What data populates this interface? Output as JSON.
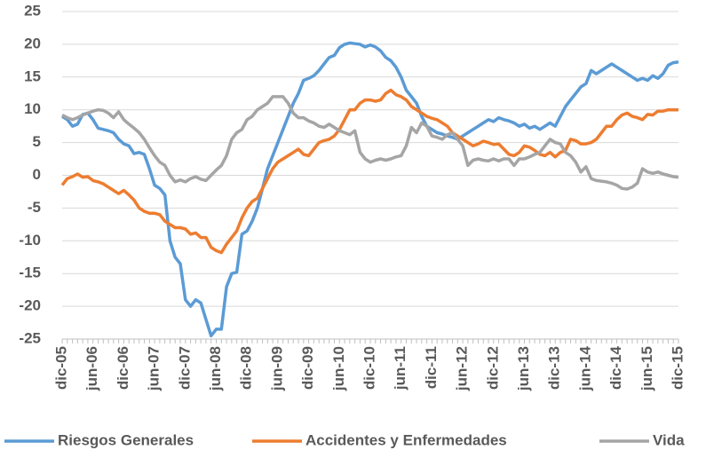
{
  "chart_data": {
    "type": "line",
    "categories": [
      "dic-05",
      null,
      null,
      null,
      null,
      null,
      "jun-06",
      null,
      null,
      null,
      null,
      null,
      "dic-06",
      null,
      null,
      null,
      null,
      null,
      "jun-07",
      null,
      null,
      null,
      null,
      null,
      "dic-07",
      null,
      null,
      null,
      null,
      null,
      "jun-08",
      null,
      null,
      null,
      null,
      null,
      "dic-08",
      null,
      null,
      null,
      null,
      null,
      "jun-09",
      null,
      null,
      null,
      null,
      null,
      "dic-09",
      null,
      null,
      null,
      null,
      null,
      "jun-10",
      null,
      null,
      null,
      null,
      null,
      "dic-10",
      null,
      null,
      null,
      null,
      null,
      "jun-11",
      null,
      null,
      null,
      null,
      null,
      "dic-11",
      null,
      null,
      null,
      null,
      null,
      "jun-12",
      null,
      null,
      null,
      null,
      null,
      "dic-12",
      null,
      null,
      null,
      null,
      null,
      "jun-13",
      null,
      null,
      null,
      null,
      null,
      "dic-13",
      null,
      null,
      null,
      null,
      null,
      "jun-14",
      null,
      null,
      null,
      null,
      null,
      "dic-14",
      null,
      null,
      null,
      null,
      null,
      "jun-15",
      null,
      null,
      null,
      null,
      null,
      "dic-15"
    ],
    "series": [
      {
        "name": "Riesgos Generales",
        "color": "#5b9bd5",
        "values": [
          9,
          8.5,
          7.5,
          7.8,
          9.3,
          9.5,
          8.5,
          7.2,
          7,
          6.8,
          6.5,
          5.5,
          4.8,
          4.5,
          3.3,
          3.5,
          3.2,
          1,
          -1.5,
          -2,
          -3,
          -10,
          -12.5,
          -13.5,
          -19,
          -20,
          -19,
          -19.5,
          -22,
          -24.5,
          -23.5,
          -23.5,
          -17,
          -15,
          -14.8,
          -9,
          -8.5,
          -7,
          -5,
          -2,
          1,
          3,
          5,
          7,
          9,
          11,
          12.5,
          14.5,
          14.8,
          15.2,
          16,
          17,
          18,
          18.3,
          19.5,
          20,
          20.2,
          20.1,
          20,
          19.6,
          19.9,
          19.6,
          19,
          18,
          17.5,
          16.5,
          15,
          13,
          12,
          11,
          9,
          7.5,
          7,
          6.5,
          6.3,
          6,
          5.8,
          5.5,
          6,
          6.5,
          7,
          7.5,
          8,
          8.5,
          8.2,
          8.8,
          8.5,
          8.3,
          8,
          7.5,
          7.8,
          7.2,
          7.5,
          7,
          7.5,
          8,
          7.5,
          9,
          10.5,
          11.5,
          12.5,
          13.5,
          14,
          16,
          15.5,
          16,
          16.5,
          17,
          16.5,
          16,
          15.5,
          15,
          14.5,
          14.8,
          14.5,
          15.2,
          14.8,
          15.5,
          16.8,
          17.2,
          17.3
        ]
      },
      {
        "name": "Accidentes y Enfermedades",
        "color": "#ed7d31",
        "values": [
          -1.5,
          -0.5,
          -0.2,
          0.2,
          -0.3,
          -0.2,
          -0.8,
          -1,
          -1.3,
          -1.8,
          -2.3,
          -2.8,
          -2.3,
          -3,
          -3.8,
          -5,
          -5.5,
          -5.8,
          -5.8,
          -6,
          -7,
          -7.5,
          -8,
          -8,
          -8.2,
          -9,
          -8.8,
          -9.5,
          -9.5,
          -11,
          -11.5,
          -11.8,
          -10.5,
          -9.5,
          -8.5,
          -6.5,
          -5,
          -4,
          -3.5,
          -2,
          -0.5,
          1,
          2,
          2.5,
          3,
          3.5,
          4,
          3.2,
          3,
          4,
          5,
          5.3,
          5.5,
          6,
          7,
          8.5,
          10,
          10,
          11,
          11.5,
          11.5,
          11.3,
          11.5,
          12.5,
          13,
          12.3,
          12,
          11.5,
          10.5,
          10,
          9.5,
          9,
          8.7,
          8.5,
          8,
          7.5,
          6.5,
          6,
          5.5,
          5,
          4.5,
          4.8,
          5.2,
          5,
          4.7,
          4.8,
          4,
          3.2,
          3,
          3.5,
          4.5,
          4.3,
          3.8,
          3.2,
          3,
          3.5,
          2.8,
          3.5,
          3.8,
          5.5,
          5.3,
          4.8,
          4.8,
          5,
          5.5,
          6.5,
          7.5,
          7.5,
          8.5,
          9.2,
          9.5,
          9,
          8.8,
          8.5,
          9.3,
          9.2,
          9.8,
          9.8,
          10,
          10,
          10
        ]
      },
      {
        "name": "Vida",
        "color": "#a5a5a5",
        "values": [
          9.2,
          8.8,
          8.5,
          8.8,
          9.2,
          9.5,
          9.8,
          10,
          9.9,
          9.5,
          8.8,
          9.7,
          8.5,
          7.8,
          7.2,
          6.5,
          5.5,
          4.2,
          3,
          2,
          1.5,
          0,
          -1,
          -0.7,
          -1,
          -0.5,
          -0.2,
          -0.6,
          -0.8,
          0,
          0.8,
          1.5,
          3,
          5.5,
          6.5,
          7,
          8.5,
          9,
          10,
          10.5,
          11,
          12,
          12,
          12,
          11,
          9.5,
          8.8,
          8.8,
          8.3,
          8,
          7.5,
          7.3,
          7.8,
          7.3,
          6.8,
          6.5,
          6.2,
          6.8,
          3.5,
          2.5,
          2,
          2.3,
          2.5,
          2.3,
          2.5,
          2.8,
          3,
          4.5,
          7.3,
          6.5,
          8,
          7.5,
          6,
          5.8,
          5.5,
          6.2,
          6.5,
          5.5,
          4.5,
          1.5,
          2.3,
          2.5,
          2.3,
          2.2,
          2.5,
          2.2,
          2.5,
          2.5,
          1.5,
          2.5,
          2.5,
          2.8,
          3.2,
          3.5,
          4.5,
          5.5,
          5,
          4.8,
          3.5,
          3,
          2,
          0.5,
          1.3,
          -0.5,
          -0.8,
          -0.9,
          -1,
          -1.2,
          -1.5,
          -2,
          -2.1,
          -1.8,
          -1.2,
          1,
          0.5,
          0.3,
          0.5,
          0.2,
          0,
          -0.2,
          -0.3
        ]
      }
    ],
    "ylim": [
      -25,
      25
    ],
    "yticks": [
      -25,
      -20,
      -15,
      -10,
      -5,
      0,
      5,
      10,
      15,
      20,
      25
    ],
    "grid": true,
    "legend": "bottom"
  }
}
